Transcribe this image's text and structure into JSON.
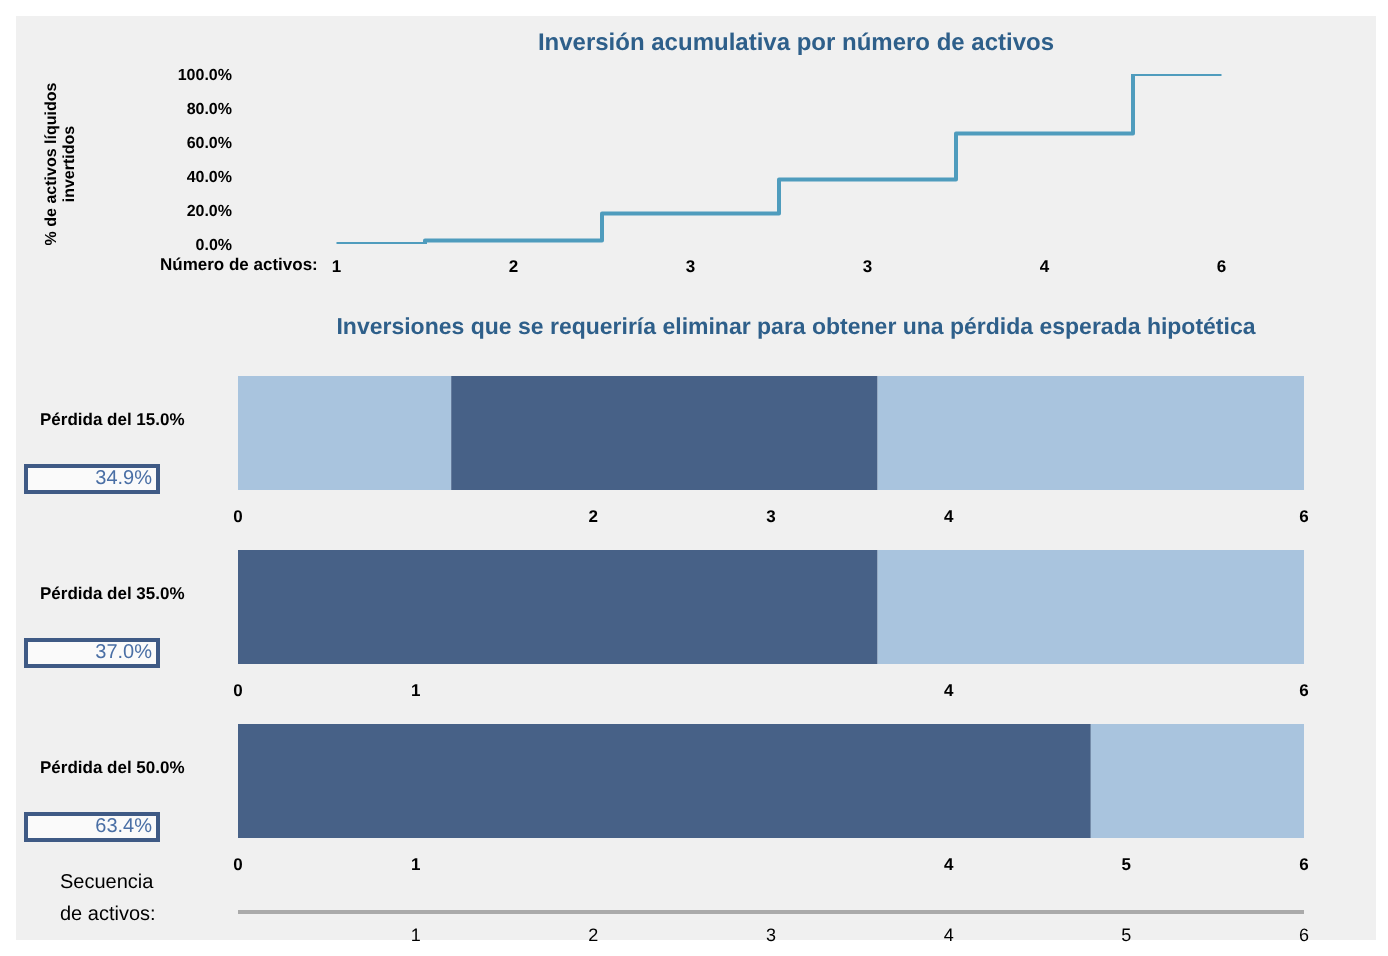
{
  "chart_data": [
    {
      "type": "step",
      "title": "Inversión acumulativa por número de activos",
      "ylabel": "% de activos líquidos invertidos",
      "xlabel": "Número de activos:",
      "categories": [
        "1",
        "2",
        "3",
        "3",
        "4",
        "6"
      ],
      "values": [
        0,
        2,
        18,
        38,
        65,
        100
      ],
      "color": "#4f9cbd",
      "ylim": [
        0,
        100
      ],
      "yticks": [
        {
          "value": 0,
          "label": "0.0%"
        },
        {
          "value": 20,
          "label": "20.0%"
        },
        {
          "value": 40,
          "label": "40.0%"
        },
        {
          "value": 60,
          "label": "60.0%"
        },
        {
          "value": 80,
          "label": "80.0%"
        },
        {
          "value": 100,
          "label": "100.0%"
        }
      ]
    },
    {
      "type": "bar",
      "orientation": "horizontal",
      "stacked": true,
      "title": "Inversiones que se requeriría eliminar para obtener una pérdida esperada hipotética",
      "categories": [
        "Pérdida del 15.0%"
      ],
      "series": [
        {
          "color": "#a9c4de",
          "values": [
            1.2
          ]
        },
        {
          "color": "#476187",
          "values": [
            2.4
          ]
        },
        {
          "color": "#a9c4de",
          "values": [
            2.4
          ]
        }
      ],
      "xlim": [
        0,
        6
      ],
      "xticks": [
        0,
        2,
        3,
        4,
        6
      ],
      "annotations": [
        "34.9%"
      ]
    },
    {
      "type": "bar",
      "orientation": "horizontal",
      "stacked": true,
      "categories": [
        "Pérdida del 35.0%"
      ],
      "series": [
        {
          "color": "#476187",
          "values": [
            3.6
          ]
        },
        {
          "color": "#a9c4de",
          "values": [
            2.4
          ]
        }
      ],
      "xlim": [
        0,
        6
      ],
      "xticks": [
        0,
        1,
        4,
        6
      ],
      "annotations": [
        "37.0%"
      ]
    },
    {
      "type": "bar",
      "orientation": "horizontal",
      "stacked": true,
      "categories": [
        "Pérdida del 50.0%"
      ],
      "series": [
        {
          "color": "#476187",
          "values": [
            4.8
          ]
        },
        {
          "color": "#a9c4de",
          "values": [
            1.2
          ]
        }
      ],
      "xlim": [
        0,
        6
      ],
      "xticks": [
        0,
        1,
        4,
        5,
        6
      ],
      "annotations": [
        "63.4%"
      ],
      "x2label": "Secuencia de activos:",
      "x2lim": [
        0,
        6
      ],
      "x2ticks": [
        1,
        2,
        3,
        4,
        5,
        6
      ]
    }
  ]
}
